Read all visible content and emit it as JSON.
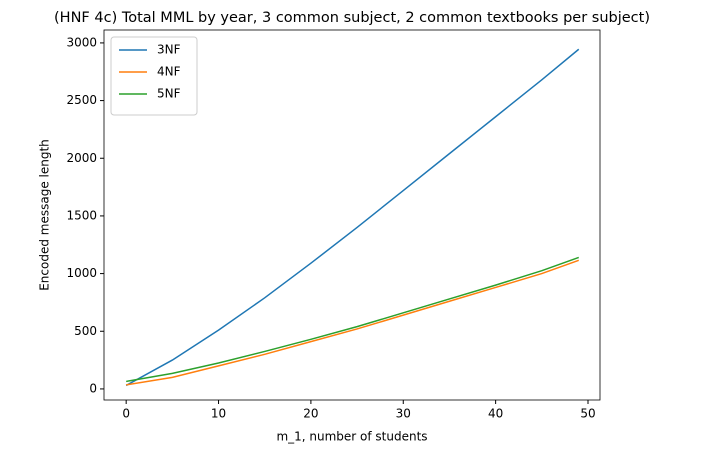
{
  "chart_data": {
    "type": "line",
    "title": "(HNF 4c) Total MML by year, 3 common subject, 2 common textbooks per subject)",
    "x_label": "m_1, number of students",
    "y_label": "Encoded message length",
    "x": [
      0,
      5,
      10,
      15,
      20,
      25,
      30,
      35,
      40,
      45,
      49
    ],
    "series": [
      {
        "name": "3NF",
        "color": "#1f77b4",
        "values": [
          30,
          250,
          510,
          790,
          1090,
          1400,
          1720,
          2040,
          2360,
          2680,
          2945
        ]
      },
      {
        "name": "4NF",
        "color": "#ff7f0e",
        "values": [
          35,
          100,
          200,
          300,
          410,
          520,
          640,
          760,
          880,
          1000,
          1115
        ]
      },
      {
        "name": "5NF",
        "color": "#2ca02c",
        "values": [
          65,
          135,
          225,
          325,
          430,
          540,
          660,
          780,
          900,
          1025,
          1140
        ]
      }
    ],
    "xlim": [
      -2.4,
      51.3
    ],
    "ylim": [
      -96,
      3112
    ],
    "xticks": [
      0,
      10,
      20,
      30,
      40,
      50
    ],
    "yticks": [
      0,
      500,
      1000,
      1500,
      2000,
      2500,
      3000
    ],
    "grid": false,
    "legend": "upper-left"
  }
}
